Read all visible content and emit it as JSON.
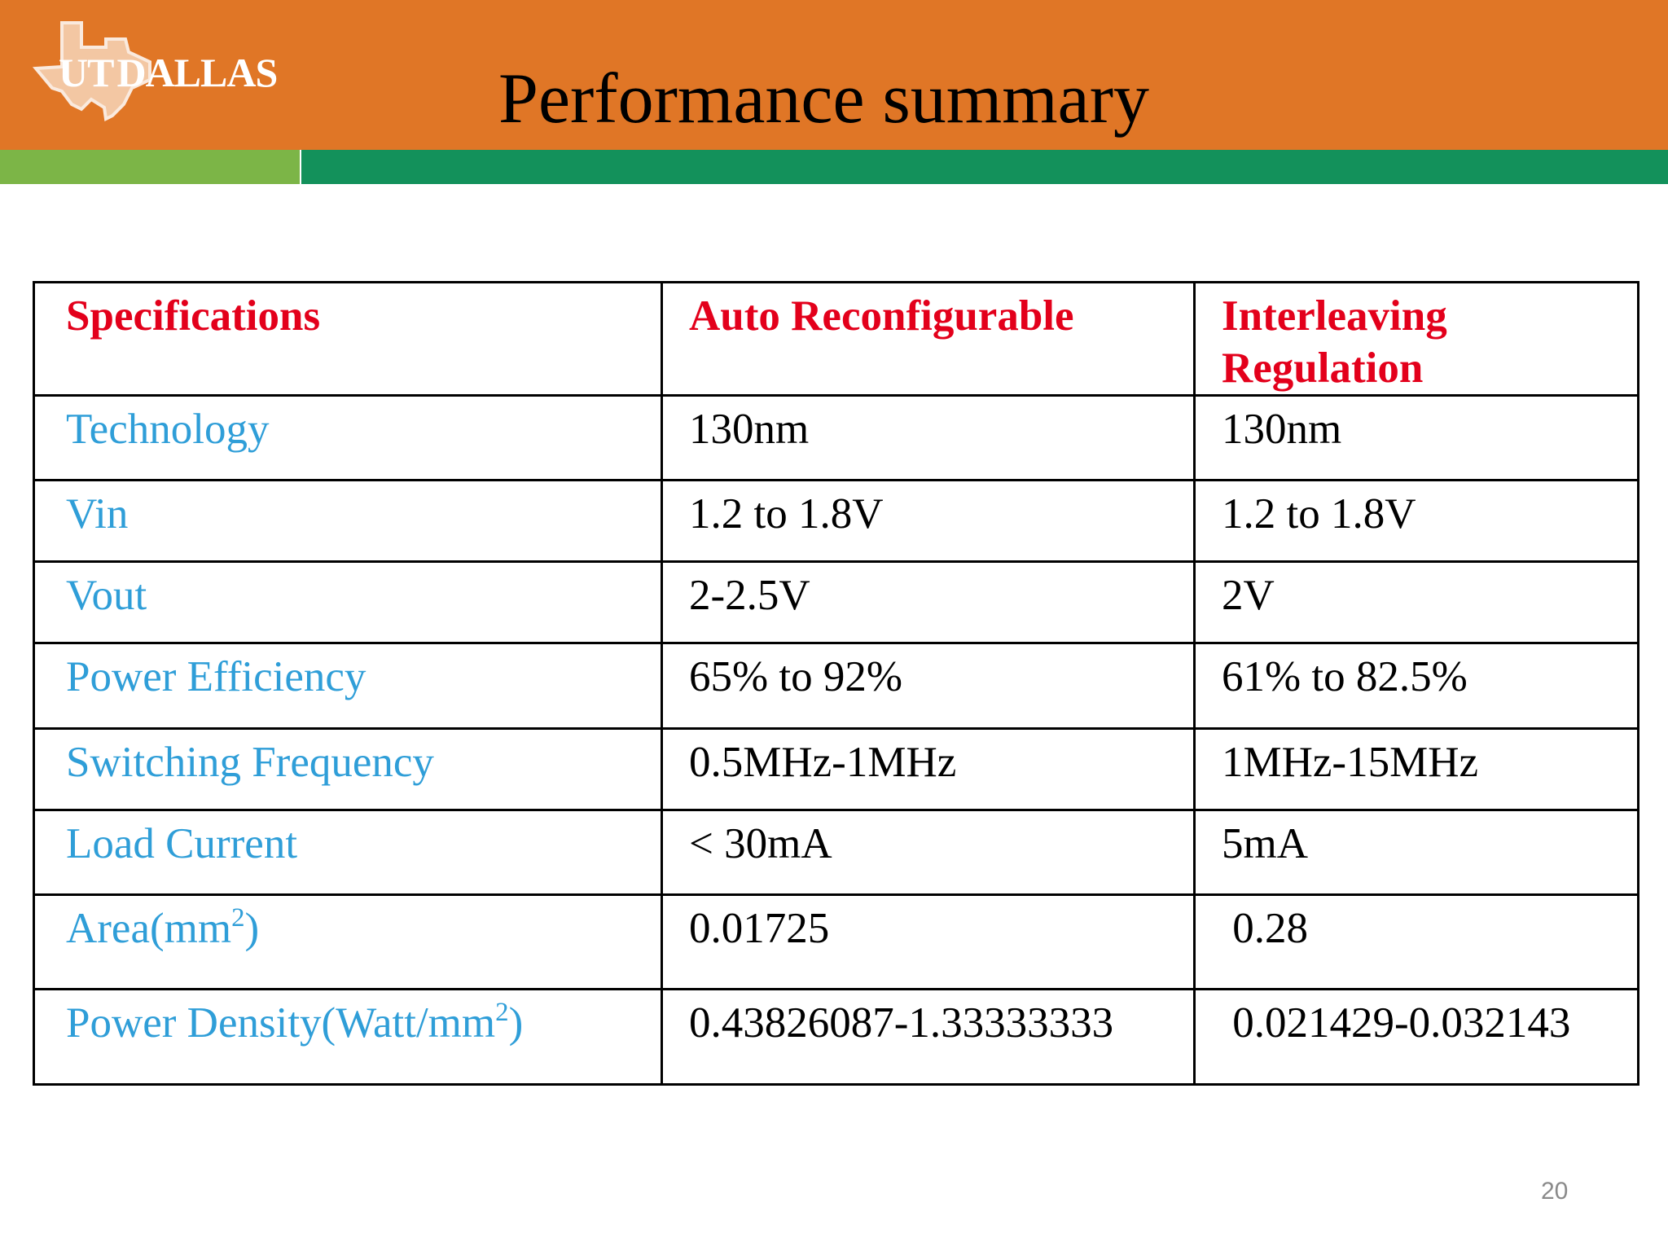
{
  "header": {
    "logo_prefix": "UT",
    "logo_suffix": "DALLAS",
    "title": "Performance summary",
    "colors": {
      "orange": "#e07626",
      "light_green": "#7cb547",
      "dark_green": "#13915b"
    }
  },
  "table": {
    "header": [
      "Specifications",
      "Auto Reconfigurable",
      "Interleaving Regulation"
    ],
    "rows": [
      {
        "spec": "Technology",
        "auto": "130nm",
        "interleaving": "130nm"
      },
      {
        "spec": "Vin",
        "auto": "1.2 to 1.8V",
        "interleaving": "1.2 to 1.8V"
      },
      {
        "spec": "Vout",
        "auto": "2-2.5V",
        "interleaving": "2V"
      },
      {
        "spec": "Power Efficiency",
        "auto": "65% to 92%",
        "interleaving": "61% to 82.5%"
      },
      {
        "spec": "Switching Frequency",
        "auto": "0.5MHz-1MHz",
        "interleaving": "1MHz-15MHz"
      },
      {
        "spec": "Load Current",
        "auto": "< 30mA",
        "interleaving": "5mA"
      },
      {
        "spec": "Area(mm",
        "spec_sup": "2",
        "spec_tail": ")",
        "auto": "0.01725",
        "interleaving": " 0.28"
      },
      {
        "spec": "Power Density(Watt/mm",
        "spec_sup": "2",
        "spec_tail": ")",
        "auto": "0.43826087-1.33333333",
        "interleaving": " 0.021429-0.032143"
      }
    ],
    "colors": {
      "header_text": "#e3001b",
      "spec_text": "#2f9ed8",
      "value_text": "#000000"
    }
  },
  "footer": {
    "page_number": "20"
  }
}
